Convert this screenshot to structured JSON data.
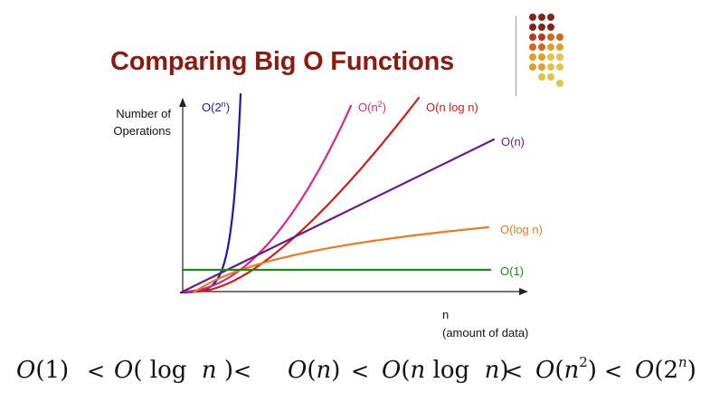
{
  "title": "Comparing Big O Functions",
  "colors": {
    "title": "#8b1a10",
    "axis": "#222222",
    "dots": [
      "#7e2718",
      "#b33a1c",
      "#d2671b",
      "#dfa02a",
      "#e0c44a"
    ]
  },
  "chart_data": {
    "type": "line",
    "title": "",
    "ylabel": [
      "Number of",
      "Operations"
    ],
    "xlabel": [
      "n",
      "(amount of data)"
    ],
    "legend_placement": "labels at line ends",
    "grid": false,
    "x_ticks": [],
    "y_ticks": [],
    "series": [
      {
        "name": "O(2",
        "sup": "n",
        "suffix": ")",
        "color": "#1a1aa8",
        "function": "2^n"
      },
      {
        "name": "O(n",
        "sup": "2",
        "suffix": ")",
        "color": "#d6288a",
        "function": "n^2"
      },
      {
        "name": "O(n log n)",
        "color": "#d11a1a",
        "function": "n*log(n)"
      },
      {
        "name": "O(n)",
        "color": "#6a1a86",
        "function": "n"
      },
      {
        "name": "O(log n)",
        "color": "#ea7a22",
        "function": "log(n)"
      },
      {
        "name": "O(1)",
        "color": "#1a8a1a",
        "function": "1"
      }
    ]
  },
  "ordering": {
    "terms": [
      {
        "pre": "O",
        "open": "(",
        "body": "1",
        "sup": "",
        "close": ")"
      },
      {
        "pre": "O",
        "open": "(",
        "body": " log  n ",
        "sup": "",
        "close": ")"
      },
      {
        "pre": "O",
        "open": "(",
        "body": "n",
        "sup": "",
        "close": ")"
      },
      {
        "pre": "O",
        "open": "(",
        "body": "n log  n",
        "sup": "",
        "close": ")"
      },
      {
        "pre": "O",
        "open": "(",
        "body": "n",
        "sup": "2",
        "close": ")"
      },
      {
        "pre": "O",
        "open": "(",
        "body": "2",
        "sup": "n",
        "close": ")"
      }
    ],
    "separator": "<"
  }
}
